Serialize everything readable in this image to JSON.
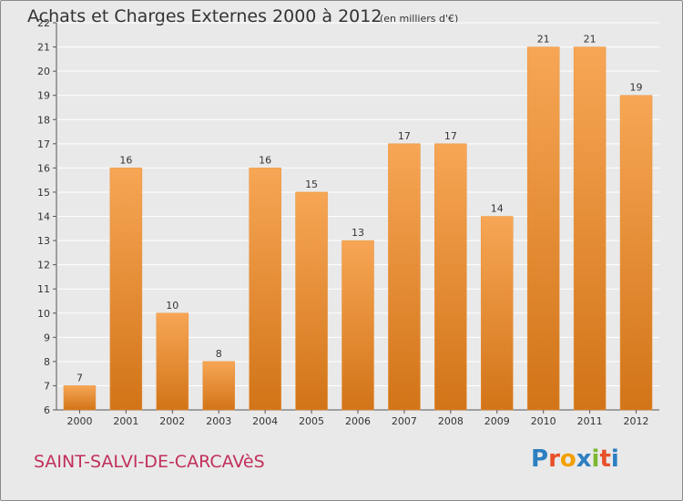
{
  "title": "Achats et Charges Externes 2000 à 2012",
  "subtitle": "(en milliers d'€)",
  "commune": "SAINT-SALVI-DE-CARCAVèS",
  "logo": {
    "text": "Proxiti",
    "letters": [
      "P",
      "r",
      "o",
      "x",
      "i",
      "t",
      "i"
    ],
    "colors": [
      "#2d7fc1",
      "#e8502a",
      "#f2a000",
      "#2d7fc1",
      "#7cb82f",
      "#e8502a",
      "#2d7fc1"
    ]
  },
  "colors": {
    "background": "#e9e9e9",
    "bar_light": "#f7a655",
    "bar_dark": "#d27418",
    "grid": "#ffffff",
    "text": "#333333",
    "commune": "#c0305a"
  },
  "chart_data": {
    "type": "bar",
    "categories": [
      "2000",
      "2001",
      "2002",
      "2003",
      "2004",
      "2005",
      "2006",
      "2007",
      "2008",
      "2009",
      "2010",
      "2011",
      "2012"
    ],
    "values": [
      7,
      16,
      10,
      8,
      16,
      15,
      13,
      17,
      17,
      14,
      21,
      21,
      19
    ],
    "title": "Achats et Charges Externes 2000 à 2012",
    "subtitle": "(en milliers d'€)",
    "ylim": [
      6,
      22
    ],
    "yticks": [
      6,
      7,
      8,
      9,
      10,
      11,
      12,
      13,
      14,
      15,
      16,
      17,
      18,
      19,
      20,
      21,
      22
    ],
    "grid": true,
    "data_labels": true
  }
}
